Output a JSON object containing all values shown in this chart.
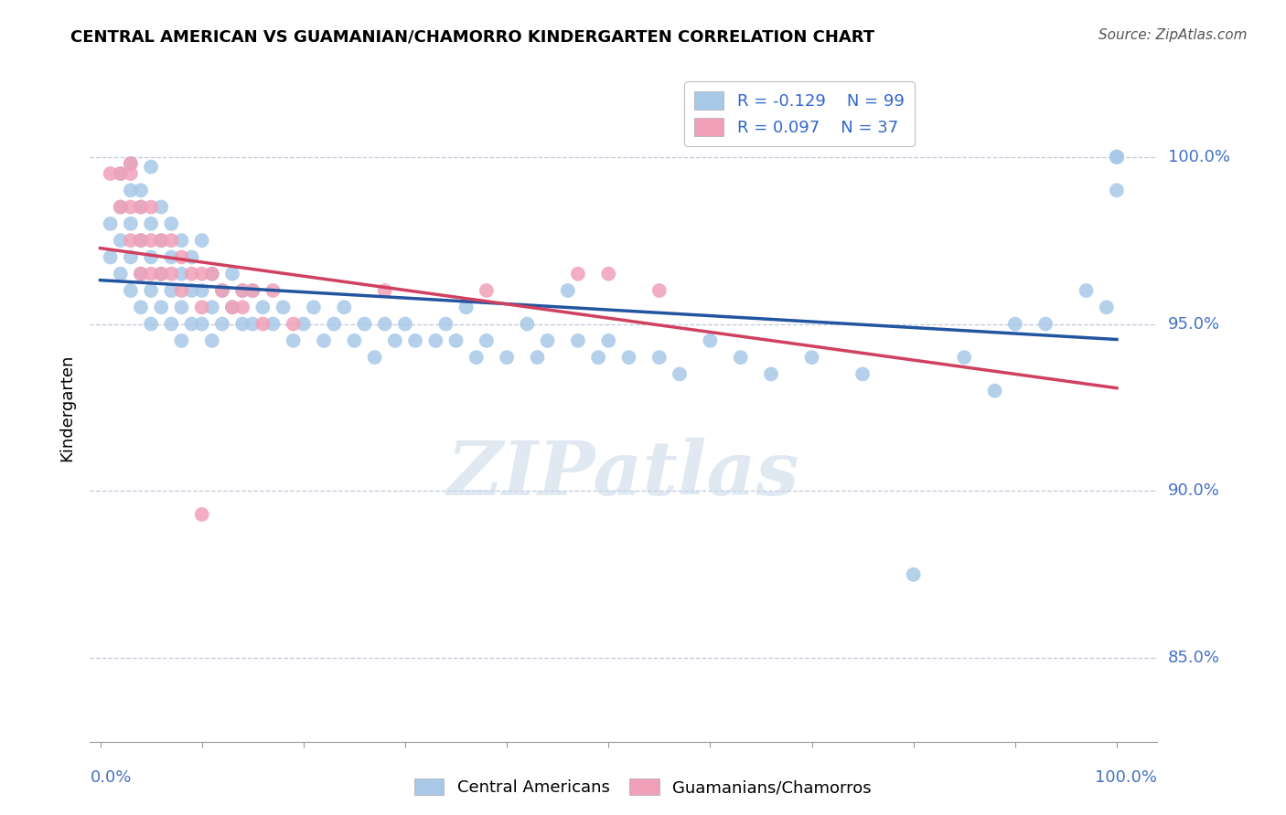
{
  "title": "CENTRAL AMERICAN VS GUAMANIAN/CHAMORRO KINDERGARTEN CORRELATION CHART",
  "source": "Source: ZipAtlas.com",
  "ylabel": "Kindergarten",
  "legend_blue_r": "-0.129",
  "legend_blue_n": "99",
  "legend_pink_r": "0.097",
  "legend_pink_n": "37",
  "blue_color": "#a8c8e8",
  "blue_line_color": "#2255a0",
  "pink_color": "#f0a0b8",
  "pink_line_color": "#d04060",
  "watermark": "ZIPatlas",
  "ytick_values": [
    0.85,
    0.9,
    0.95,
    1.0
  ],
  "ytick_labels": [
    "85.0%",
    "90.0%",
    "95.0%",
    "100.0%"
  ],
  "ylim": [
    0.825,
    1.025
  ],
  "xlim": [
    -0.01,
    1.04
  ],
  "blue_scatter_x": [
    0.01,
    0.01,
    0.02,
    0.02,
    0.02,
    0.02,
    0.03,
    0.03,
    0.03,
    0.03,
    0.03,
    0.04,
    0.04,
    0.04,
    0.04,
    0.04,
    0.05,
    0.05,
    0.05,
    0.05,
    0.05,
    0.06,
    0.06,
    0.06,
    0.06,
    0.07,
    0.07,
    0.07,
    0.07,
    0.08,
    0.08,
    0.08,
    0.08,
    0.09,
    0.09,
    0.09,
    0.1,
    0.1,
    0.1,
    0.11,
    0.11,
    0.11,
    0.12,
    0.12,
    0.13,
    0.13,
    0.14,
    0.14,
    0.15,
    0.15,
    0.16,
    0.17,
    0.18,
    0.19,
    0.2,
    0.21,
    0.22,
    0.23,
    0.24,
    0.25,
    0.26,
    0.27,
    0.28,
    0.29,
    0.3,
    0.31,
    0.33,
    0.34,
    0.35,
    0.36,
    0.37,
    0.38,
    0.4,
    0.42,
    0.43,
    0.44,
    0.46,
    0.47,
    0.49,
    0.5,
    0.52,
    0.55,
    0.57,
    0.6,
    0.63,
    0.66,
    0.7,
    0.75,
    0.8,
    0.85,
    0.88,
    0.9,
    0.93,
    0.97,
    0.99,
    1.0,
    1.0,
    1.0,
    1.0
  ],
  "blue_scatter_y": [
    0.98,
    0.97,
    0.995,
    0.985,
    0.975,
    0.965,
    0.99,
    0.98,
    0.97,
    0.96,
    0.998,
    0.985,
    0.975,
    0.965,
    0.955,
    0.99,
    0.98,
    0.97,
    0.96,
    0.95,
    0.997,
    0.985,
    0.975,
    0.965,
    0.955,
    0.98,
    0.97,
    0.96,
    0.95,
    0.975,
    0.965,
    0.955,
    0.945,
    0.97,
    0.96,
    0.95,
    0.975,
    0.96,
    0.95,
    0.965,
    0.955,
    0.945,
    0.96,
    0.95,
    0.965,
    0.955,
    0.96,
    0.95,
    0.96,
    0.95,
    0.955,
    0.95,
    0.955,
    0.945,
    0.95,
    0.955,
    0.945,
    0.95,
    0.955,
    0.945,
    0.95,
    0.94,
    0.95,
    0.945,
    0.95,
    0.945,
    0.945,
    0.95,
    0.945,
    0.955,
    0.94,
    0.945,
    0.94,
    0.95,
    0.94,
    0.945,
    0.96,
    0.945,
    0.94,
    0.945,
    0.94,
    0.94,
    0.935,
    0.945,
    0.94,
    0.935,
    0.94,
    0.935,
    0.875,
    0.94,
    0.93,
    0.95,
    0.95,
    0.96,
    0.955,
    0.99,
    1.0,
    1.0,
    1.0
  ],
  "pink_scatter_x": [
    0.01,
    0.02,
    0.02,
    0.03,
    0.03,
    0.03,
    0.03,
    0.04,
    0.04,
    0.04,
    0.05,
    0.05,
    0.05,
    0.06,
    0.06,
    0.07,
    0.07,
    0.08,
    0.08,
    0.09,
    0.1,
    0.1,
    0.11,
    0.12,
    0.13,
    0.14,
    0.15,
    0.16,
    0.17,
    0.19,
    0.1,
    0.14,
    0.28,
    0.38,
    0.47,
    0.5,
    0.55
  ],
  "pink_scatter_y": [
    0.995,
    0.995,
    0.985,
    0.995,
    0.985,
    0.975,
    0.998,
    0.985,
    0.975,
    0.965,
    0.985,
    0.975,
    0.965,
    0.975,
    0.965,
    0.975,
    0.965,
    0.97,
    0.96,
    0.965,
    0.965,
    0.955,
    0.965,
    0.96,
    0.955,
    0.955,
    0.96,
    0.95,
    0.96,
    0.95,
    0.893,
    0.96,
    0.96,
    0.96,
    0.965,
    0.965,
    0.96
  ]
}
